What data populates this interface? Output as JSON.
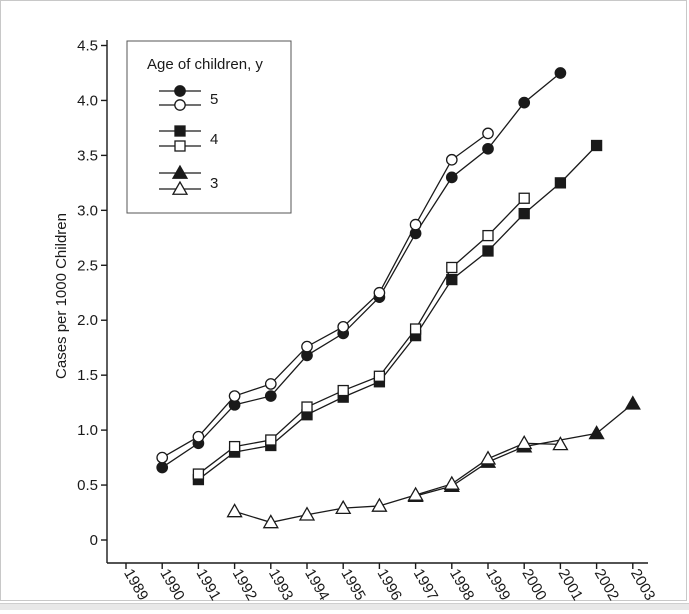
{
  "colors": {
    "ink": "#1a1a1a",
    "frame": "#c8c8c8",
    "background": "#ffffff",
    "hollow_fill": "#ffffff"
  },
  "chart_data": {
    "type": "line",
    "title": "",
    "xlabel": "",
    "ylabel": "Cases per 1000 Children",
    "x_ticks": [
      "1989",
      "1990",
      "1991",
      "1992",
      "1993",
      "1994",
      "1995",
      "1996",
      "1997",
      "1998",
      "1999",
      "2000",
      "2001",
      "2002",
      "2003"
    ],
    "y_ticks": [
      "0",
      "0.5",
      "1.0",
      "1.5",
      "2.0",
      "2.5",
      "3.0",
      "3.5",
      "4.0",
      "4.5"
    ],
    "xlim": [
      1989,
      2003
    ],
    "ylim": [
      0,
      4.5
    ],
    "grid": false,
    "legend": {
      "title": "Age of children, y",
      "placement": "top-left",
      "entries": [
        {
          "label": "5",
          "markers": [
            "filled-circle",
            "open-circle"
          ]
        },
        {
          "label": "4",
          "markers": [
            "filled-square",
            "open-square"
          ]
        },
        {
          "label": "3",
          "markers": [
            "filled-triangle",
            "open-triangle"
          ]
        }
      ]
    },
    "series": [
      {
        "name": "Age 5 (filled)",
        "marker": "filled-circle",
        "x": [
          1990,
          1991,
          1992,
          1993,
          1994,
          1995,
          1996,
          1997,
          1998,
          1999,
          2000,
          2001
        ],
        "y": [
          0.66,
          0.88,
          1.23,
          1.31,
          1.68,
          1.88,
          2.21,
          2.79,
          3.3,
          3.56,
          3.98,
          4.25
        ]
      },
      {
        "name": "Age 5 (open)",
        "marker": "open-circle",
        "x": [
          1990,
          1991,
          1992,
          1993,
          1994,
          1995,
          1996,
          1997,
          1998,
          1999
        ],
        "y": [
          0.75,
          0.94,
          1.31,
          1.42,
          1.76,
          1.94,
          2.25,
          2.87,
          3.46,
          3.7
        ]
      },
      {
        "name": "Age 4 (filled)",
        "marker": "filled-square",
        "x": [
          1991,
          1992,
          1993,
          1994,
          1995,
          1996,
          1997,
          1998,
          1999,
          2000,
          2001,
          2002
        ],
        "y": [
          0.55,
          0.8,
          0.86,
          1.14,
          1.3,
          1.44,
          1.86,
          2.37,
          2.63,
          2.97,
          3.25,
          3.59
        ]
      },
      {
        "name": "Age 4 (open)",
        "marker": "open-square",
        "x": [
          1991,
          1992,
          1993,
          1994,
          1995,
          1996,
          1997,
          1998,
          1999,
          2000
        ],
        "y": [
          0.6,
          0.85,
          0.91,
          1.21,
          1.36,
          1.49,
          1.92,
          2.48,
          2.77,
          3.11
        ]
      },
      {
        "name": "Age 3 (filled)",
        "marker": "filled-triangle",
        "x": [
          1997,
          1998,
          1999,
          2000,
          2002,
          2003
        ],
        "y": [
          0.4,
          0.49,
          0.71,
          0.85,
          0.97,
          1.24
        ]
      },
      {
        "name": "Age 3 (open)",
        "marker": "open-triangle",
        "x": [
          1992,
          1993,
          1994,
          1995,
          1996,
          1997,
          1998,
          1999,
          2000,
          2001
        ],
        "y": [
          0.26,
          0.16,
          0.23,
          0.29,
          0.31,
          0.41,
          0.51,
          0.74,
          0.88,
          0.87
        ]
      }
    ]
  }
}
